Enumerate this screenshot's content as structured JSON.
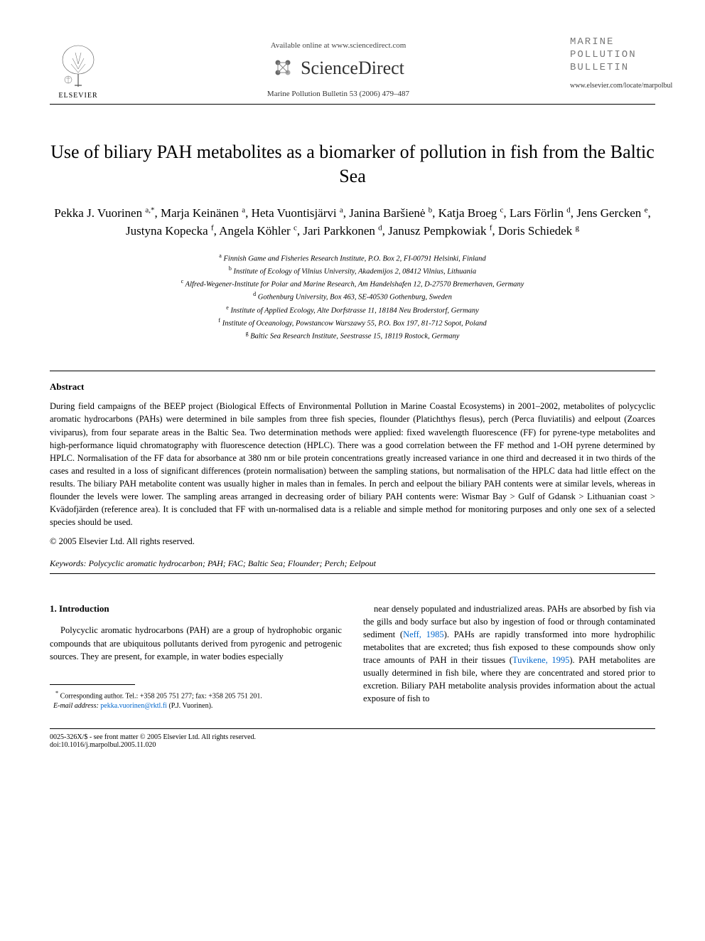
{
  "header": {
    "available_online": "Available online at www.sciencedirect.com",
    "sciencedirect": "ScienceDirect",
    "journal_ref": "Marine Pollution Bulletin 53 (2006) 479–487",
    "elsevier": "ELSEVIER",
    "journal_logo_line1": "MARINE",
    "journal_logo_line2": "POLLUTION",
    "journal_logo_line3": "BULLETIN",
    "journal_url": "www.elsevier.com/locate/marpolbul"
  },
  "title": "Use of biliary PAH metabolites as a biomarker of pollution in fish from the Baltic Sea",
  "authors_html": "Pekka J. Vuorinen <sup>a,*</sup>, Marja Keinänen <sup>a</sup>, Heta Vuontisjärvi <sup>a</sup>, Janina Baršienė <sup>b</sup>, Katja Broeg <sup>c</sup>, Lars Förlin <sup>d</sup>, Jens Gercken <sup>e</sup>, Justyna Kopecka <sup>f</sup>, Angela Köhler <sup>c</sup>, Jari Parkkonen <sup>d</sup>, Janusz Pempkowiak <sup>f</sup>, Doris Schiedek <sup>g</sup>",
  "affiliations": [
    {
      "sup": "a",
      "text": "Finnish Game and Fisheries Research Institute, P.O. Box 2, FI-00791 Helsinki, Finland"
    },
    {
      "sup": "b",
      "text": "Institute of Ecology of Vilnius University, Akademijos 2, 08412 Vilnius, Lithuania"
    },
    {
      "sup": "c",
      "text": "Alfred-Wegener-Institute for Polar and Marine Research, Am Handelshafen 12, D-27570 Bremerhaven, Germany"
    },
    {
      "sup": "d",
      "text": "Gothenburg University, Box 463, SE-40530 Gothenburg, Sweden"
    },
    {
      "sup": "e",
      "text": "Institute of Applied Ecology, Alte Dorfstrasse 11, 18184 Neu Broderstorf, Germany"
    },
    {
      "sup": "f",
      "text": "Institute of Oceanology, Powstancow Warszawy 55, P.O. Box 197, 81-712 Sopot, Poland"
    },
    {
      "sup": "g",
      "text": "Baltic Sea Research Institute, Seestrasse 15, 18119 Rostock, Germany"
    }
  ],
  "abstract": {
    "heading": "Abstract",
    "text": "During field campaigns of the BEEP project (Biological Effects of Environmental Pollution in Marine Coastal Ecosystems) in 2001–2002, metabolites of polycyclic aromatic hydrocarbons (PAHs) were determined in bile samples from three fish species, flounder (Platichthys flesus), perch (Perca fluviatilis) and eelpout (Zoarces viviparus), from four separate areas in the Baltic Sea. Two determination methods were applied: fixed wavelength fluorescence (FF) for pyrene-type metabolites and high-performance liquid chromatography with fluorescence detection (HPLC). There was a good correlation between the FF method and 1-OH pyrene determined by HPLC. Normalisation of the FF data for absorbance at 380 nm or bile protein concentrations greatly increased variance in one third and decreased it in two thirds of the cases and resulted in a loss of significant differences (protein normalisation) between the sampling stations, but normalisation of the HPLC data had little effect on the results. The biliary PAH metabolite content was usually higher in males than in females. In perch and eelpout the biliary PAH contents were at similar levels, whereas in flounder the levels were lower. The sampling areas arranged in decreasing order of biliary PAH contents were: Wismar Bay > Gulf of Gdansk > Lithuanian coast > Kvädofjärden (reference area). It is concluded that FF with un-normalised data is a reliable and simple method for monitoring purposes and only one sex of a selected species should be used.",
    "copyright": "© 2005 Elsevier Ltd. All rights reserved."
  },
  "keywords": {
    "label": "Keywords:",
    "text": "Polycyclic aromatic hydrocarbon; PAH; FAC; Baltic Sea; Flounder; Perch; Eelpout"
  },
  "introduction": {
    "heading": "1. Introduction",
    "col1": "Polycyclic aromatic hydrocarbons (PAH) are a group of hydrophobic organic compounds that are ubiquitous pollutants derived from pyrogenic and petrogenic sources. They are present, for example, in water bodies especially",
    "col2_part1": "near densely populated and industrialized areas. PAHs are absorbed by fish via the gills and body surface but also by ingestion of food or through contaminated sediment (",
    "col2_ref1": "Neff, 1985",
    "col2_part2": "). PAHs are rapidly transformed into more hydrophilic metabolites that are excreted; thus fish exposed to these compounds show only trace amounts of PAH in their tissues (",
    "col2_ref2": "Tuvikene, 1995",
    "col2_part3": "). PAH metabolites are usually determined in fish bile, where they are concentrated and stored prior to excretion. Biliary PAH metabolite analysis provides information about the actual exposure of fish to"
  },
  "footnote": {
    "corresponding": "Corresponding author. Tel.: +358 205 751 277; fax: +358 205 751 201.",
    "email_label": "E-mail address:",
    "email": "pekka.vuorinen@rktl.fi",
    "author": "(P.J. Vuorinen)."
  },
  "footer": {
    "left": "0025-326X/$ - see front matter © 2005 Elsevier Ltd. All rights reserved.",
    "doi": "doi:10.1016/j.marpolbul.2005.11.020"
  },
  "colors": {
    "text": "#000000",
    "link": "#0066cc",
    "journal_logo": "#777777",
    "background": "#ffffff"
  }
}
